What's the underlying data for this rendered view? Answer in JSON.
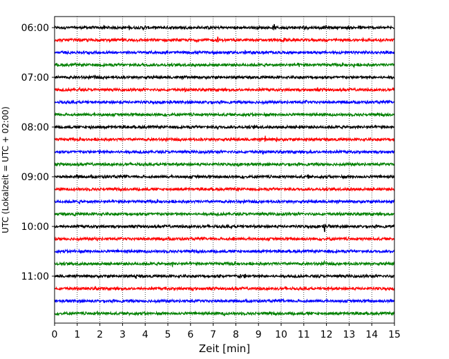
{
  "chart_data": {
    "type": "line",
    "xlabel": "Zeit  [min]",
    "ylabel": "UTC (Lokalzeit = UTC + 02:00)",
    "xlim": [
      0,
      15
    ],
    "x_ticks": [
      "0",
      "1",
      "2",
      "3",
      "4",
      "5",
      "6",
      "7",
      "8",
      "9",
      "10",
      "11",
      "12",
      "13",
      "14",
      "15"
    ],
    "y_ticks": [
      {
        "label": "06:00",
        "trace": 0
      },
      {
        "label": "07:00",
        "trace": 4
      },
      {
        "label": "08:00",
        "trace": 8
      },
      {
        "label": "09:00",
        "trace": 12
      },
      {
        "label": "10:00",
        "trace": 16
      },
      {
        "label": "11:00",
        "trace": 20
      }
    ],
    "trace_interval_min": 15,
    "trace_colors": [
      "#000000",
      "#ff0000",
      "#0000ff",
      "#008000"
    ],
    "grid": "vertical dotted",
    "traces": [
      {
        "start": "06:00",
        "color": "#000000",
        "events": [
          [
            1.4,
            0.3
          ],
          [
            2.2,
            0.35
          ],
          [
            3.3,
            0.45
          ],
          [
            3.9,
            0.3
          ],
          [
            4.0,
            0.3
          ],
          [
            6.9,
            0.25
          ],
          [
            9.7,
            0.6
          ],
          [
            11.0,
            0.3
          ],
          [
            12.0,
            0.4
          ],
          [
            13.5,
            0.4
          ]
        ]
      },
      {
        "start": "06:15",
        "color": "#ff0000",
        "events": [
          [
            1.1,
            0.3
          ],
          [
            3.0,
            0.35
          ],
          [
            7.2,
            0.5
          ],
          [
            10.1,
            0.3
          ],
          [
            10.2,
            0.35
          ],
          [
            13.6,
            0.3
          ]
        ]
      },
      {
        "start": "06:30",
        "color": "#0000ff",
        "events": [
          [
            1.5,
            0.4
          ],
          [
            2.3,
            0.2
          ],
          [
            8.4,
            0.3
          ],
          [
            13.3,
            0.3
          ]
        ]
      },
      {
        "start": "06:45",
        "color": "#008000",
        "events": [
          [
            0.9,
            0.25
          ],
          [
            3.9,
            0.25
          ],
          [
            6.2,
            0.25
          ],
          [
            10.8,
            0.3
          ],
          [
            13.2,
            0.35
          ]
        ]
      },
      {
        "start": "07:00",
        "color": "#000000",
        "events": [
          [
            1.8,
            0.45
          ],
          [
            5.8,
            0.25
          ],
          [
            11.0,
            0.3
          ]
        ]
      },
      {
        "start": "07:15",
        "color": "#ff0000",
        "events": [
          [
            1.1,
            0.3
          ],
          [
            5.8,
            0.3
          ],
          [
            11.6,
            0.3
          ],
          [
            13.5,
            0.3
          ]
        ]
      },
      {
        "start": "07:30",
        "color": "#0000ff",
        "events": [
          [
            2.9,
            0.3
          ],
          [
            5.1,
            0.3
          ],
          [
            6.8,
            0.35
          ],
          [
            11.1,
            0.25
          ],
          [
            12.9,
            0.3
          ]
        ]
      },
      {
        "start": "07:45",
        "color": "#008000",
        "events": [
          [
            2.1,
            0.3
          ],
          [
            4.5,
            0.3
          ],
          [
            7.6,
            0.25
          ],
          [
            10.4,
            0.3
          ]
        ]
      },
      {
        "start": "08:00",
        "color": "#000000",
        "events": [
          [
            1.6,
            0.5
          ],
          [
            2.2,
            0.25
          ],
          [
            7.2,
            0.3
          ],
          [
            8.8,
            0.3
          ],
          [
            10.8,
            0.3
          ],
          [
            14.1,
            0.25
          ]
        ]
      },
      {
        "start": "08:15",
        "color": "#ff0000",
        "events": [
          [
            4.9,
            0.3
          ],
          [
            9.3,
            0.55
          ],
          [
            9.8,
            0.35
          ],
          [
            11.1,
            0.25
          ]
        ]
      },
      {
        "start": "08:30",
        "color": "#0000ff",
        "events": [
          [
            2.0,
            0.25
          ],
          [
            6.6,
            0.3
          ],
          [
            9.2,
            0.4
          ],
          [
            11.3,
            0.3
          ],
          [
            12.2,
            0.3
          ]
        ]
      },
      {
        "start": "08:45",
        "color": "#008000",
        "events": [
          [
            3.4,
            0.25
          ],
          [
            5.4,
            0.3
          ],
          [
            8.1,
            0.25
          ],
          [
            10.4,
            0.25
          ]
        ]
      },
      {
        "start": "09:00",
        "color": "#000000",
        "events": [
          [
            1.0,
            0.3
          ],
          [
            2.3,
            0.35
          ],
          [
            6.3,
            0.25
          ],
          [
            11.2,
            0.3
          ],
          [
            12.2,
            0.25
          ]
        ]
      },
      {
        "start": "09:15",
        "color": "#ff0000",
        "events": [
          [
            0.9,
            0.25
          ],
          [
            3.7,
            0.25
          ],
          [
            8.1,
            0.3
          ],
          [
            11.9,
            0.35
          ],
          [
            13.1,
            0.3
          ]
        ]
      },
      {
        "start": "09:30",
        "color": "#0000ff",
        "events": [
          [
            1.1,
            0.25
          ],
          [
            3.1,
            0.25
          ],
          [
            5.1,
            0.25
          ],
          [
            8.2,
            0.3
          ],
          [
            12.1,
            0.3
          ],
          [
            14.3,
            0.3
          ]
        ]
      },
      {
        "start": "09:45",
        "color": "#008000",
        "events": [
          [
            0.9,
            0.25
          ],
          [
            4.1,
            0.25
          ],
          [
            7.2,
            0.4
          ],
          [
            10.1,
            0.25
          ]
        ]
      },
      {
        "start": "10:00",
        "color": "#000000",
        "events": [
          [
            7.8,
            0.3
          ],
          [
            9.6,
            0.3
          ],
          [
            11.9,
            1.6
          ],
          [
            12.1,
            0.5
          ]
        ]
      },
      {
        "start": "10:15",
        "color": "#ff0000",
        "events": [
          [
            1.9,
            0.25
          ],
          [
            4.8,
            0.25
          ],
          [
            7.9,
            0.3
          ],
          [
            8.7,
            0.3
          ],
          [
            12.2,
            0.3
          ]
        ]
      },
      {
        "start": "10:30",
        "color": "#0000ff",
        "events": [
          [
            0.9,
            0.25
          ],
          [
            3.2,
            0.3
          ],
          [
            8.1,
            0.3
          ],
          [
            12.1,
            0.25
          ]
        ]
      },
      {
        "start": "10:45",
        "color": "#008000",
        "events": [
          [
            1.1,
            0.35
          ],
          [
            5.2,
            0.45
          ],
          [
            7.8,
            0.25
          ],
          [
            11.9,
            0.35
          ]
        ]
      },
      {
        "start": "11:00",
        "color": "#000000",
        "events": [
          [
            3.6,
            0.35
          ],
          [
            7.3,
            0.3
          ],
          [
            8.2,
            0.45
          ],
          [
            8.4,
            0.35
          ],
          [
            11.7,
            0.25
          ]
        ]
      },
      {
        "start": "11:15",
        "color": "#ff0000",
        "events": [
          [
            1.8,
            0.25
          ],
          [
            4.9,
            0.25
          ],
          [
            6.1,
            0.3
          ],
          [
            9.1,
            0.25
          ],
          [
            12.1,
            0.3
          ]
        ]
      },
      {
        "start": "11:30",
        "color": "#0000ff",
        "events": [
          [
            1.1,
            0.25
          ],
          [
            6.0,
            0.3
          ],
          [
            10.1,
            0.25
          ],
          [
            14.8,
            0.35
          ]
        ]
      },
      {
        "start": "11:45",
        "color": "#008000",
        "events": [
          [
            1.9,
            0.3
          ],
          [
            3.3,
            0.25
          ],
          [
            7.5,
            0.4
          ],
          [
            11.2,
            0.25
          ]
        ]
      }
    ]
  }
}
